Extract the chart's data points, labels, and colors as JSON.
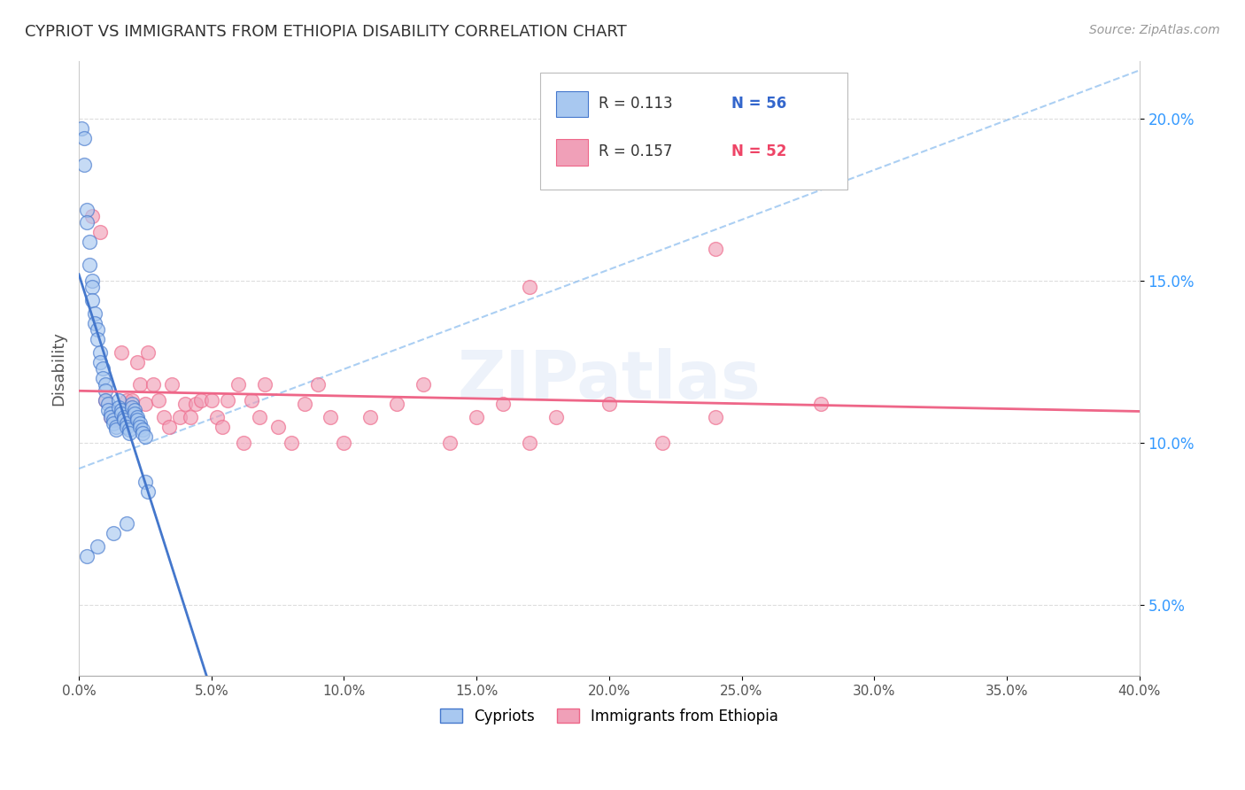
{
  "title": "CYPRIOT VS IMMIGRANTS FROM ETHIOPIA DISABILITY CORRELATION CHART",
  "source": "Source: ZipAtlas.com",
  "ylabel": "Disability",
  "ytick_values": [
    0.05,
    0.1,
    0.15,
    0.2
  ],
  "xlim": [
    0.0,
    0.4
  ],
  "ylim": [
    0.028,
    0.218
  ],
  "legend_label_1": "Cypriots",
  "legend_label_2": "Immigrants from Ethiopia",
  "R1": "0.113",
  "N1": "56",
  "R2": "0.157",
  "N2": "52",
  "color_blue": "#A8C8F0",
  "color_pink": "#F0A0B8",
  "color_line_blue": "#4477CC",
  "color_line_pink": "#EE6688",
  "color_dash_blue": "#88BBEE",
  "watermark": "ZIPatlas",
  "blue_points_x": [
    0.001,
    0.002,
    0.002,
    0.003,
    0.003,
    0.004,
    0.004,
    0.005,
    0.005,
    0.005,
    0.006,
    0.006,
    0.007,
    0.007,
    0.008,
    0.008,
    0.009,
    0.009,
    0.01,
    0.01,
    0.01,
    0.011,
    0.011,
    0.012,
    0.012,
    0.013,
    0.013,
    0.014,
    0.014,
    0.015,
    0.015,
    0.016,
    0.016,
    0.017,
    0.017,
    0.018,
    0.018,
    0.019,
    0.019,
    0.02,
    0.02,
    0.021,
    0.021,
    0.022,
    0.022,
    0.023,
    0.023,
    0.024,
    0.024,
    0.025,
    0.025,
    0.026,
    0.018,
    0.013,
    0.007,
    0.003
  ],
  "blue_points_y": [
    0.197,
    0.194,
    0.186,
    0.172,
    0.168,
    0.162,
    0.155,
    0.15,
    0.148,
    0.144,
    0.14,
    0.137,
    0.135,
    0.132,
    0.128,
    0.125,
    0.123,
    0.12,
    0.118,
    0.116,
    0.113,
    0.112,
    0.11,
    0.109,
    0.108,
    0.107,
    0.106,
    0.105,
    0.104,
    0.113,
    0.111,
    0.11,
    0.109,
    0.108,
    0.107,
    0.106,
    0.105,
    0.104,
    0.103,
    0.112,
    0.111,
    0.11,
    0.109,
    0.108,
    0.107,
    0.106,
    0.105,
    0.104,
    0.103,
    0.102,
    0.088,
    0.085,
    0.075,
    0.072,
    0.068,
    0.065
  ],
  "pink_points_x": [
    0.005,
    0.008,
    0.01,
    0.012,
    0.015,
    0.016,
    0.018,
    0.018,
    0.02,
    0.022,
    0.023,
    0.025,
    0.026,
    0.028,
    0.03,
    0.032,
    0.034,
    0.035,
    0.038,
    0.04,
    0.042,
    0.044,
    0.046,
    0.05,
    0.052,
    0.054,
    0.056,
    0.06,
    0.062,
    0.065,
    0.068,
    0.07,
    0.075,
    0.08,
    0.085,
    0.09,
    0.095,
    0.1,
    0.11,
    0.12,
    0.13,
    0.14,
    0.15,
    0.16,
    0.17,
    0.18,
    0.2,
    0.22,
    0.24,
    0.28,
    0.17,
    0.24
  ],
  "pink_points_y": [
    0.17,
    0.165,
    0.113,
    0.108,
    0.107,
    0.128,
    0.113,
    0.108,
    0.113,
    0.125,
    0.118,
    0.112,
    0.128,
    0.118,
    0.113,
    0.108,
    0.105,
    0.118,
    0.108,
    0.112,
    0.108,
    0.112,
    0.113,
    0.113,
    0.108,
    0.105,
    0.113,
    0.118,
    0.1,
    0.113,
    0.108,
    0.118,
    0.105,
    0.1,
    0.112,
    0.118,
    0.108,
    0.1,
    0.108,
    0.112,
    0.118,
    0.1,
    0.108,
    0.112,
    0.1,
    0.108,
    0.112,
    0.1,
    0.108,
    0.112,
    0.148,
    0.16
  ]
}
